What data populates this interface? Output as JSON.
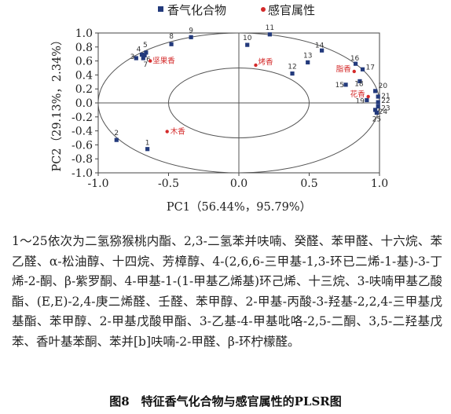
{
  "chart_data": {
    "type": "scatter",
    "xlabel": "PC1（56.44%，95.79%）",
    "ylabel": "PC2（29.13%，2.34%）",
    "xlim": [
      -1.0,
      1.0
    ],
    "ylim": [
      -1.0,
      1.0
    ],
    "xticks": [
      "-1.0",
      "-0.5",
      "0.0",
      "0.5",
      "1.0"
    ],
    "yticks": [
      "1.0",
      "0.8",
      "0.6",
      "0.4",
      "0.2",
      "0.0",
      "-0.2",
      "-0.4",
      "-0.6",
      "-0.8",
      "-1.0"
    ],
    "grid": false,
    "legend_position": "top",
    "reference_circles": [
      0.5,
      1.0
    ],
    "series": [
      {
        "name": "香气化合物",
        "color": "#233a7c",
        "marker": "square",
        "points": [
          {
            "label": "1",
            "x": -0.65,
            "y": -0.66
          },
          {
            "label": "2",
            "x": -0.87,
            "y": -0.53
          },
          {
            "label": "3",
            "x": -0.73,
            "y": 0.64
          },
          {
            "label": "4",
            "x": -0.69,
            "y": 0.69
          },
          {
            "label": "5",
            "x": -0.66,
            "y": 0.72
          },
          {
            "label": "6",
            "x": -0.67,
            "y": 0.68
          },
          {
            "label": "7",
            "x": -0.68,
            "y": 0.64
          },
          {
            "label": "8",
            "x": -0.48,
            "y": 0.84
          },
          {
            "label": "9",
            "x": -0.34,
            "y": 0.94
          },
          {
            "label": "10",
            "x": 0.06,
            "y": 0.83
          },
          {
            "label": "11",
            "x": 0.22,
            "y": 0.98
          },
          {
            "label": "12",
            "x": 0.38,
            "y": 0.42
          },
          {
            "label": "13",
            "x": 0.49,
            "y": 0.58
          },
          {
            "label": "14",
            "x": 0.59,
            "y": 0.75
          },
          {
            "label": "15",
            "x": 0.76,
            "y": 0.26
          },
          {
            "label": "16",
            "x": 0.83,
            "y": 0.56
          },
          {
            "label": "17",
            "x": 0.88,
            "y": 0.48
          },
          {
            "label": "18",
            "x": 0.86,
            "y": 0.31
          },
          {
            "label": "19",
            "x": 0.91,
            "y": 0.04
          },
          {
            "label": "20",
            "x": 0.97,
            "y": 0.17
          },
          {
            "label": "21",
            "x": 0.99,
            "y": 0.09
          },
          {
            "label": "22",
            "x": 0.99,
            "y": 0.01
          },
          {
            "label": "23",
            "x": 0.99,
            "y": -0.05
          },
          {
            "label": "24",
            "x": 0.97,
            "y": -0.1
          },
          {
            "label": "25",
            "x": 0.98,
            "y": -0.14
          }
        ]
      },
      {
        "name": "感官属性",
        "color": "#d42a2a",
        "marker": "circle",
        "points": [
          {
            "label": "坚果香",
            "x": -0.63,
            "y": 0.6
          },
          {
            "label": "烤香",
            "x": 0.12,
            "y": 0.54
          },
          {
            "label": "脂香",
            "x": 0.82,
            "y": 0.45
          },
          {
            "label": "花香",
            "x": 0.92,
            "y": 0.09
          },
          {
            "label": "木香",
            "x": -0.51,
            "y": -0.41
          }
        ]
      }
    ]
  },
  "caption": {
    "note": "1～25依次为二氢猕猴桃内酯、2,3-二氢苯并呋喃、癸醛、苯甲醛、十六烷、苯乙醛、α-松油醇、十四烷、芳樟醇、4-(2,6,6-三甲基-1,3-环已二烯-1-基)-3-丁烯-2-酮、β-紫罗酮、4-甲基-1-(1-甲基乙烯基)环己烯、十三烷、3-呋喃甲基乙酸酯、(E,E)-2,4-庚二烯醛、壬醛、苯甲醇、2-甲基-丙酸-3-羟基-2,2,4-三甲基戊基酯、苯甲醇、2-甲基戊酸甲酯、3-乙基-4-甲基吡咯-2,5-二酮、3,5-二羟基戊苯、香叶基苯酮、苯并[b]呋喃-2-甲醛、β-环柠檬醛。",
    "title": "图8　特征香气化合物与感官属性的PLSR图"
  }
}
